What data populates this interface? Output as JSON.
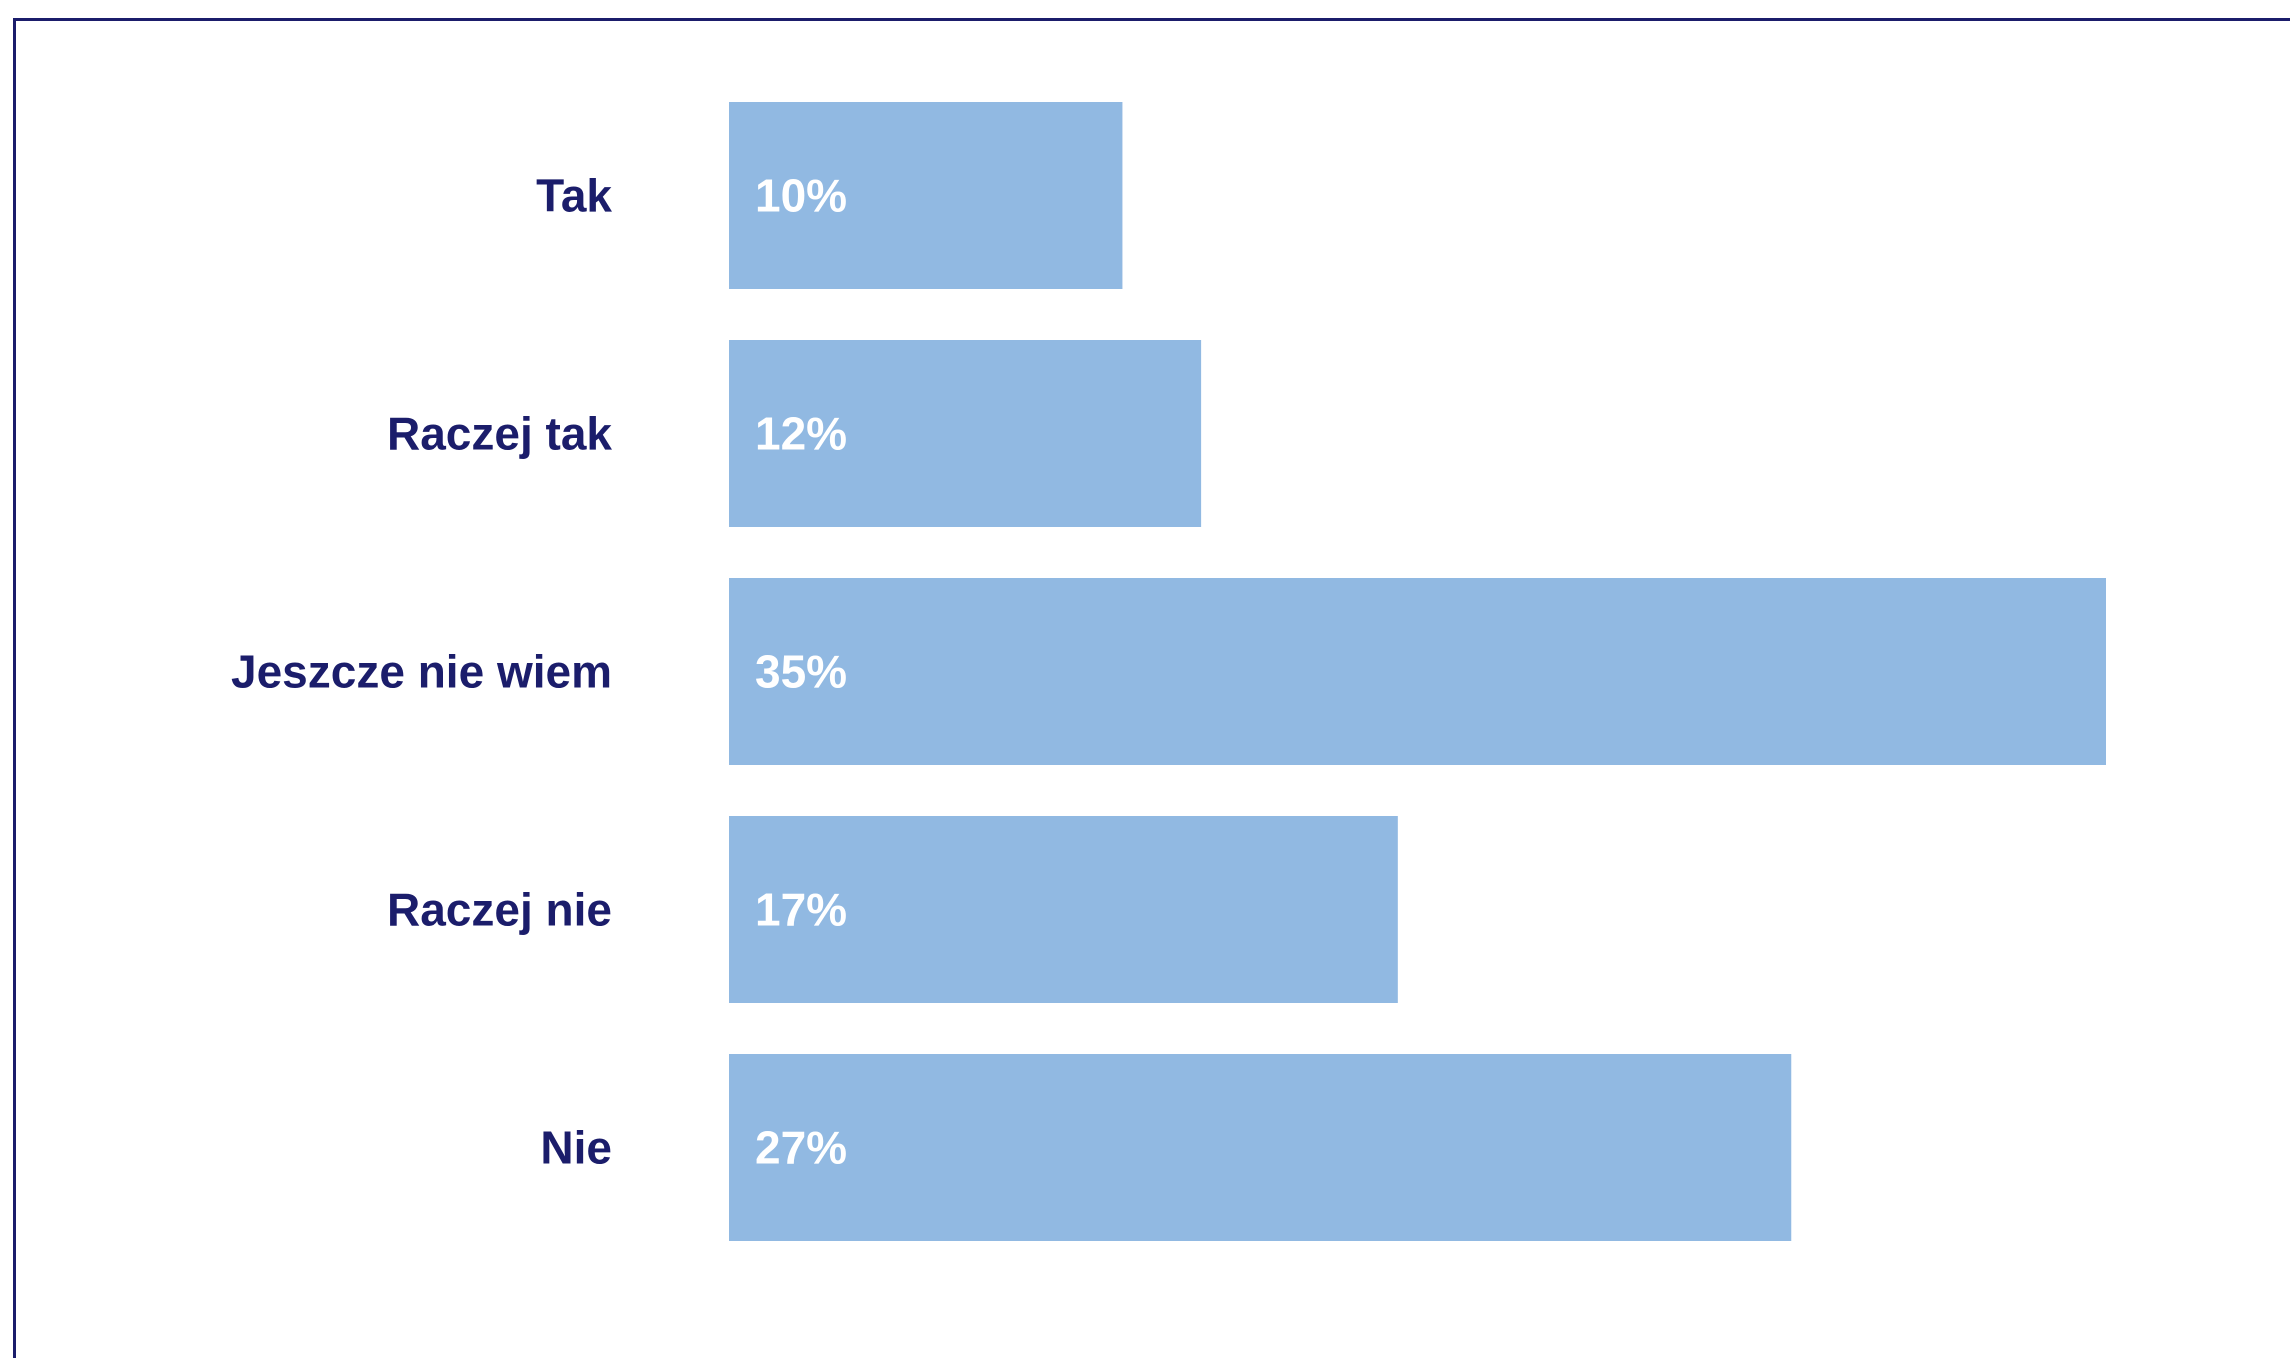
{
  "colors": {
    "bar": "#91b9e2",
    "category_text": "#1b1d6b",
    "value_text": "#ffffff",
    "frame": "#1b1d6b",
    "background": "#ffffff"
  },
  "chart_data": {
    "type": "bar",
    "orientation": "horizontal",
    "categories": [
      "Tak",
      "Raczej tak",
      "Jeszcze nie wiem",
      "Raczej nie",
      "Nie"
    ],
    "values": [
      10,
      12,
      35,
      17,
      27
    ],
    "value_labels": [
      "10%",
      "12%",
      "35%",
      "17%",
      "27%"
    ],
    "unit": "%",
    "xlim": [
      0,
      35
    ],
    "title": "",
    "xlabel": "",
    "ylabel": "",
    "grid": false,
    "legend": "none"
  }
}
